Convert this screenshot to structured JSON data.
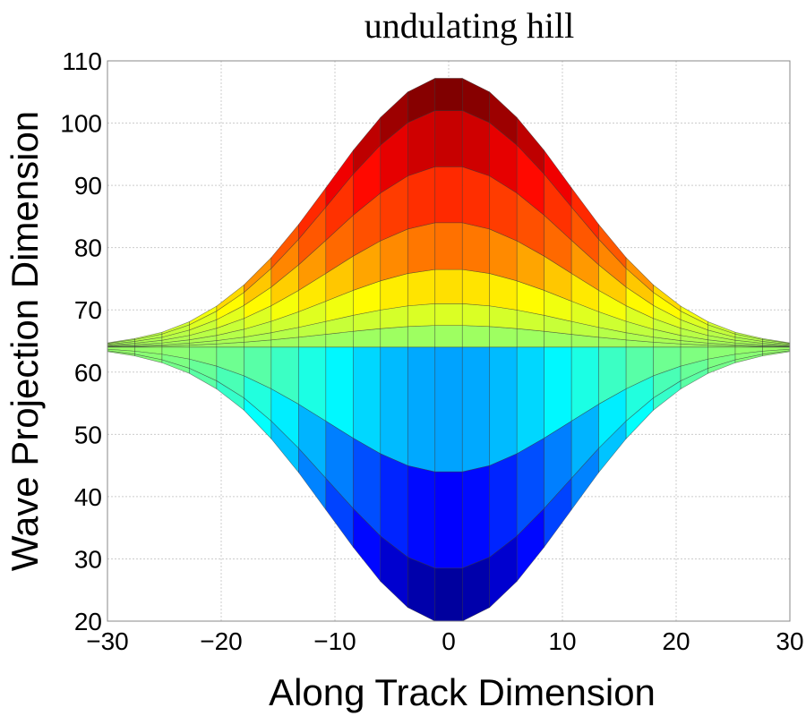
{
  "chart_data": {
    "type": "area",
    "title": "undulating hill",
    "xlabel": "Along Track Dimension",
    "ylabel": "Wave Projection Dimension",
    "xlim": [
      -30,
      30
    ],
    "ylim": [
      20,
      110
    ],
    "xticks": [
      -30,
      -20,
      -10,
      0,
      10,
      20,
      30
    ],
    "xtick_labels": [
      "−30",
      "−20",
      "−10",
      "0",
      "10",
      "20",
      "30"
    ],
    "yticks": [
      20,
      30,
      40,
      50,
      60,
      70,
      80,
      90,
      100,
      110
    ],
    "ytick_labels": [
      "20",
      "30",
      "40",
      "50",
      "60",
      "70",
      "80",
      "90",
      "100",
      "110"
    ],
    "grid": true,
    "colormap": "jet",
    "baseline": 64,
    "x": [
      -30,
      -27.6,
      -25.2,
      -22.8,
      -20.4,
      -18,
      -15.6,
      -13.2,
      -10.8,
      -8.4,
      -6,
      -3.6,
      -1.2,
      1.2,
      3.6,
      6,
      8.4,
      10.8,
      13.2,
      15.6,
      18,
      20.4,
      22.8,
      25.2,
      27.6,
      30
    ],
    "upper_envelope": [
      64.7,
      65.4,
      66.4,
      68.1,
      70.6,
      74.0,
      78.4,
      83.7,
      89.6,
      95.6,
      100.9,
      105.0,
      107.2,
      107.2,
      105.0,
      100.9,
      95.6,
      89.6,
      83.7,
      78.4,
      74.0,
      70.6,
      68.1,
      66.4,
      65.4,
      64.7
    ],
    "lower_envelope": [
      63.3,
      62.6,
      61.5,
      59.8,
      57.3,
      53.9,
      49.3,
      43.9,
      37.9,
      31.9,
      26.4,
      22.2,
      20.0,
      20.0,
      22.2,
      26.4,
      31.9,
      37.9,
      43.9,
      49.3,
      53.9,
      57.3,
      59.8,
      61.5,
      62.6,
      63.3
    ],
    "upper_band_fractions": [
      0,
      0.081,
      0.162,
      0.289,
      0.463,
      0.671,
      0.88,
      1
    ],
    "lower_band_fractions": [
      0,
      0.455,
      0.807,
      1
    ]
  }
}
